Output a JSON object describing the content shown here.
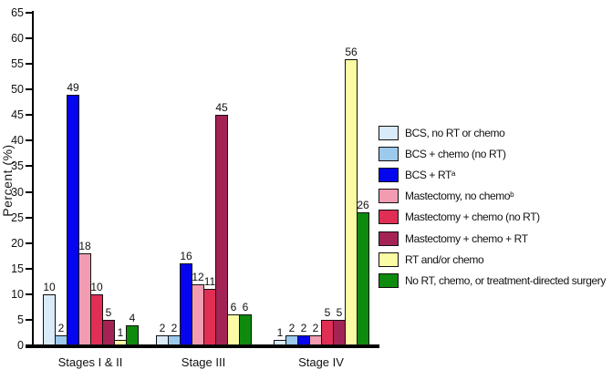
{
  "chart_data": {
    "type": "bar",
    "title": "",
    "xlabel": "",
    "ylabel": "Percent (%)",
    "ylim": [
      0,
      65
    ],
    "ytick_step": 5,
    "grid": false,
    "legend_position": "right",
    "bar_outline_color": "#101010",
    "categories": [
      "Stages I & II",
      "Stage III",
      "Stage IV"
    ],
    "series": [
      {
        "name": "BCS, no RT or chemo",
        "color": "#D9EAF8",
        "values": [
          10,
          2,
          1
        ]
      },
      {
        "name": "BCS + chemo (no RT)",
        "color": "#9CC9EC",
        "values": [
          2,
          2,
          2
        ]
      },
      {
        "name": "BCS + RTᵃ",
        "color": "#0505EE",
        "values": [
          49,
          16,
          2
        ]
      },
      {
        "name": "Mastectomy, no chemoᵇ",
        "color": "#F29CB1",
        "values": [
          18,
          12,
          2
        ]
      },
      {
        "name": "Mastectomy + chemo (no RT)",
        "color": "#E02E55",
        "values": [
          10,
          11,
          5
        ]
      },
      {
        "name": "Mastectomy + chemo + RT",
        "color": "#A42355",
        "values": [
          5,
          45,
          5
        ]
      },
      {
        "name": "RT and/or chemo",
        "color": "#FBFBA4",
        "values": [
          1,
          6,
          56
        ]
      },
      {
        "name": "No RT, chemo, or treatment-directed surgery",
        "color": "#0E8A0E",
        "values": [
          4,
          6,
          26
        ]
      }
    ]
  }
}
